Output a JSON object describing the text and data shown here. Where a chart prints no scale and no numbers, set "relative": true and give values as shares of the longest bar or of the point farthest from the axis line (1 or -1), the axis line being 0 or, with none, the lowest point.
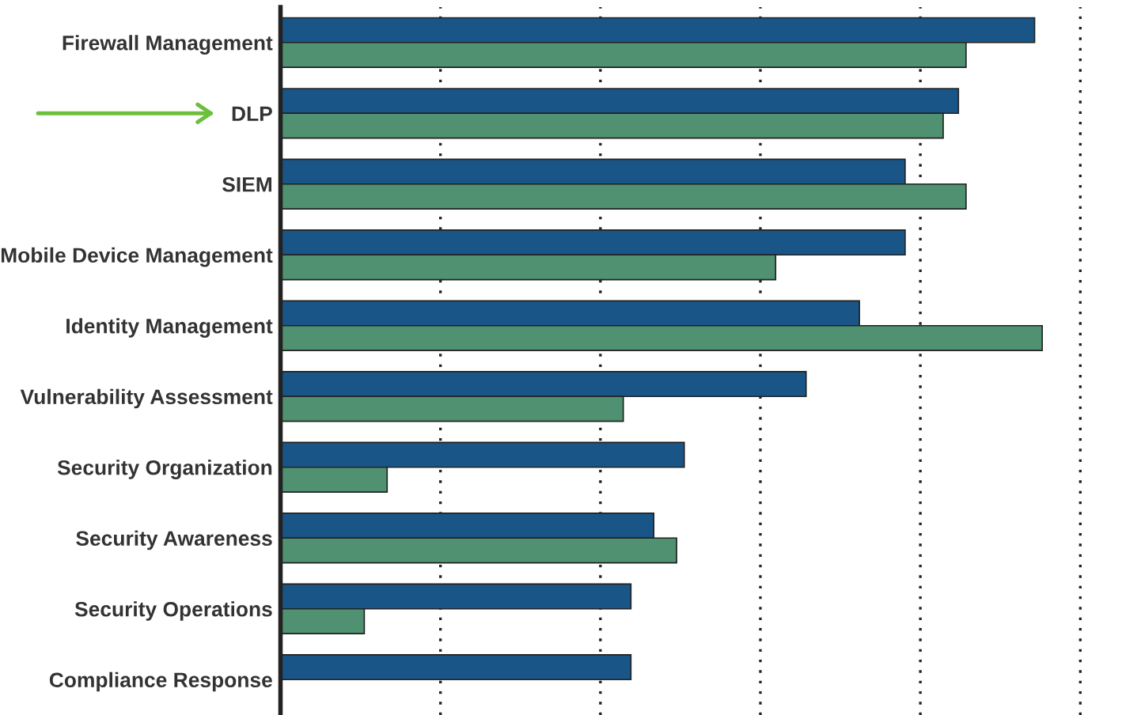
{
  "chart_data": {
    "type": "bar",
    "orientation": "horizontal",
    "relative": true,
    "grid": "x",
    "categories": [
      "Firewall Management",
      "DLP",
      "SIEM",
      "Mobile Device Management",
      "Identity Management",
      "Vulnerability Assessment",
      "Security Organization",
      "Security Awareness",
      "Security Operations",
      "Compliance Response"
    ],
    "series": [
      {
        "color": "#1a5587",
        "values": [
          0.99,
          0.89,
          0.82,
          0.82,
          0.76,
          0.69,
          0.53,
          0.49,
          0.46,
          0.46
        ]
      },
      {
        "color": "#4f9170",
        "values": [
          0.9,
          0.87,
          0.9,
          0.65,
          1.0,
          0.45,
          0.14,
          0.52,
          0.11,
          null
        ]
      }
    ]
  }
}
